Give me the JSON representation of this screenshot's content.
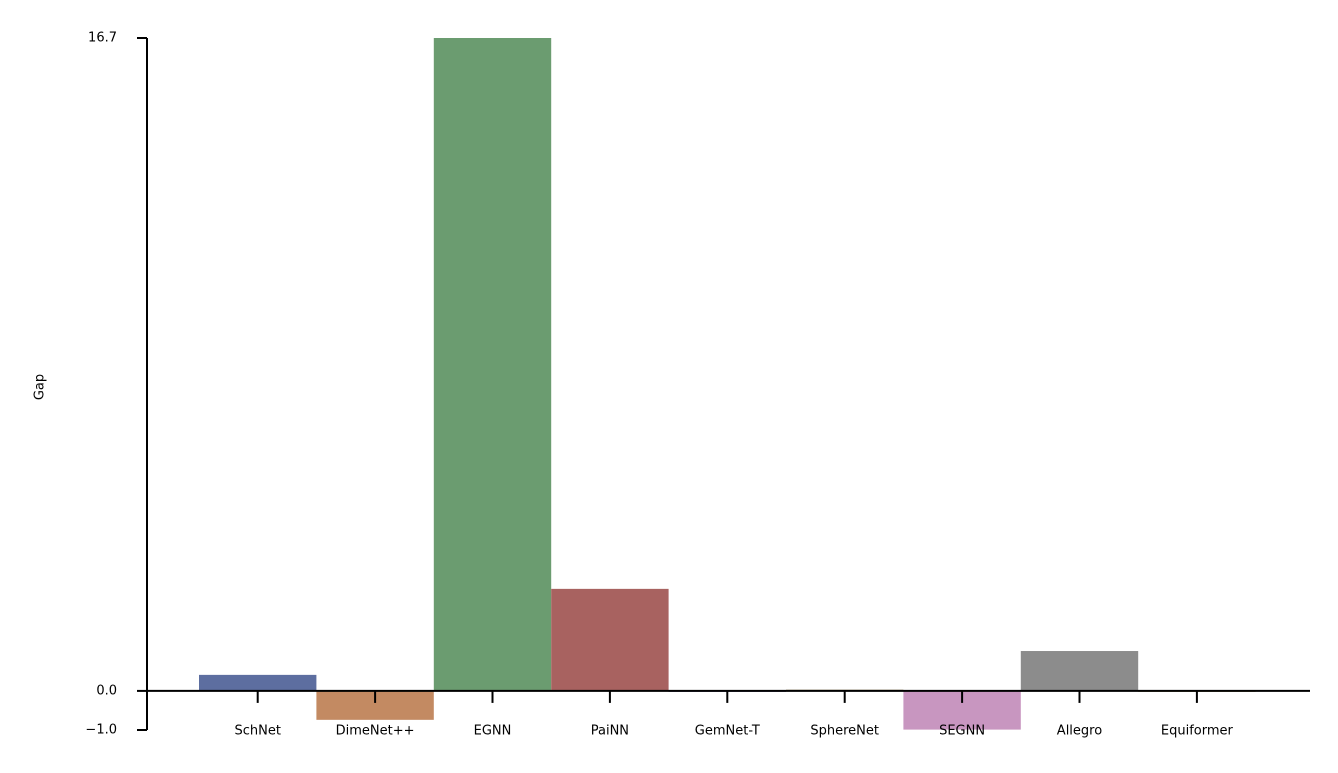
{
  "chart_data": {
    "type": "bar",
    "ylabel": "Gap",
    "categories": [
      "SchNet",
      "DimeNet++",
      "EGNN",
      "PaiNN",
      "GemNet-T",
      "SphereNet",
      "SEGNN",
      "Allegro",
      "Equiformer"
    ],
    "values": [
      0.41,
      -0.74,
      16.7,
      2.61,
      0,
      0.03,
      -0.99,
      1.02,
      0
    ],
    "colors": [
      "#5d6ea0",
      "#c38a62",
      "#6b9c70",
      "#a86260",
      "#8172b3",
      "#8f7b4f",
      "#c896c0",
      "#8c8c8c",
      "#ccb974"
    ],
    "ylim": [
      -1,
      16.7
    ],
    "yticks": [
      {
        "value": -1,
        "label": "−1.0"
      },
      {
        "value": 0,
        "label": "0.0"
      },
      16.7
    ]
  }
}
